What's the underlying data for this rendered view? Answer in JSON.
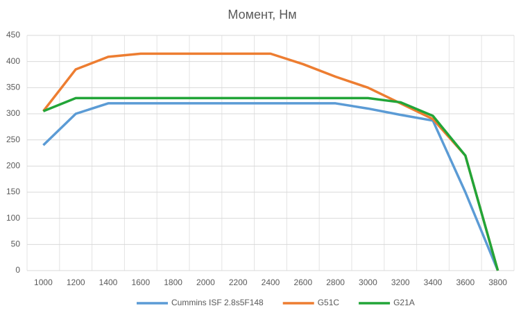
{
  "chart_data": {
    "type": "line",
    "title": "Момент, Нм",
    "categories": [
      "1000",
      "1200",
      "1400",
      "1600",
      "1800",
      "2000",
      "2200",
      "2400",
      "2600",
      "2800",
      "3000",
      "3200",
      "3400",
      "3600",
      "3800"
    ],
    "series": [
      {
        "name": "Cummins ISF 2.8s5F148",
        "color": "#5b9bd5",
        "values": [
          240,
          300,
          320,
          320,
          320,
          320,
          320,
          320,
          320,
          320,
          310,
          298,
          287,
          150,
          0
        ]
      },
      {
        "name": "G51C",
        "color": "#ed7d31",
        "values": [
          305,
          385,
          409,
          415,
          415,
          415,
          415,
          415,
          395,
          371,
          350,
          320,
          290,
          220,
          0
        ]
      },
      {
        "name": "G21A",
        "color": "#22a538",
        "values": [
          305,
          330,
          330,
          330,
          330,
          330,
          330,
          330,
          330,
          330,
          330,
          322,
          296,
          220,
          0
        ]
      }
    ],
    "ylim": [
      0,
      450
    ],
    "yticks": [
      0,
      50,
      100,
      150,
      200,
      250,
      300,
      350,
      400,
      450
    ],
    "grid": true,
    "legend": "bottom"
  }
}
